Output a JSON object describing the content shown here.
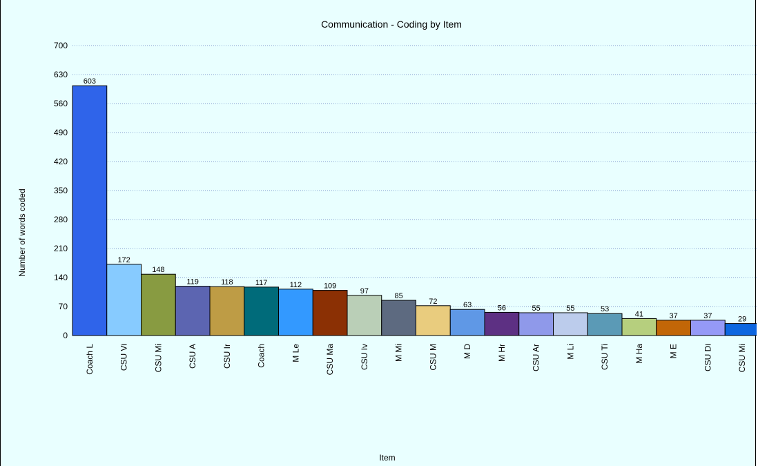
{
  "chart_data": {
    "type": "bar",
    "title": "Communication - Coding by Item",
    "xlabel": "Item",
    "ylabel": "Number of words coded",
    "ylim": [
      0,
      700
    ],
    "yticks": [
      0,
      70,
      140,
      210,
      280,
      350,
      420,
      490,
      560,
      630,
      700
    ],
    "grid": true,
    "categories": [
      "Coach L",
      "CSU Vi",
      "CSU Mi",
      "CSU A",
      "CSU Ir",
      "Coach",
      "M Le",
      "CSU Ma",
      "CSU Iv",
      "M Mi",
      "CSU M",
      "M D",
      "M Hr",
      "CSU Ar",
      "M Li",
      "CSU Ti",
      "M Ha",
      "M E",
      "CSU Di",
      "CSU Mi"
    ],
    "values": [
      603,
      172,
      148,
      119,
      118,
      117,
      112,
      109,
      97,
      85,
      72,
      63,
      56,
      55,
      55,
      53,
      41,
      37,
      37,
      29
    ],
    "colors": [
      "#2f64ea",
      "#87cbff",
      "#889b41",
      "#5c65b1",
      "#be9c45",
      "#006b7a",
      "#3399ff",
      "#8b3004",
      "#bacfb7",
      "#5d6a80",
      "#e9cc7e",
      "#5f98e6",
      "#5d3083",
      "#8f99ea",
      "#bcccec",
      "#5b9ab6",
      "#b6cf7e",
      "#c26607",
      "#9599f7",
      "#0d66e0"
    ]
  }
}
